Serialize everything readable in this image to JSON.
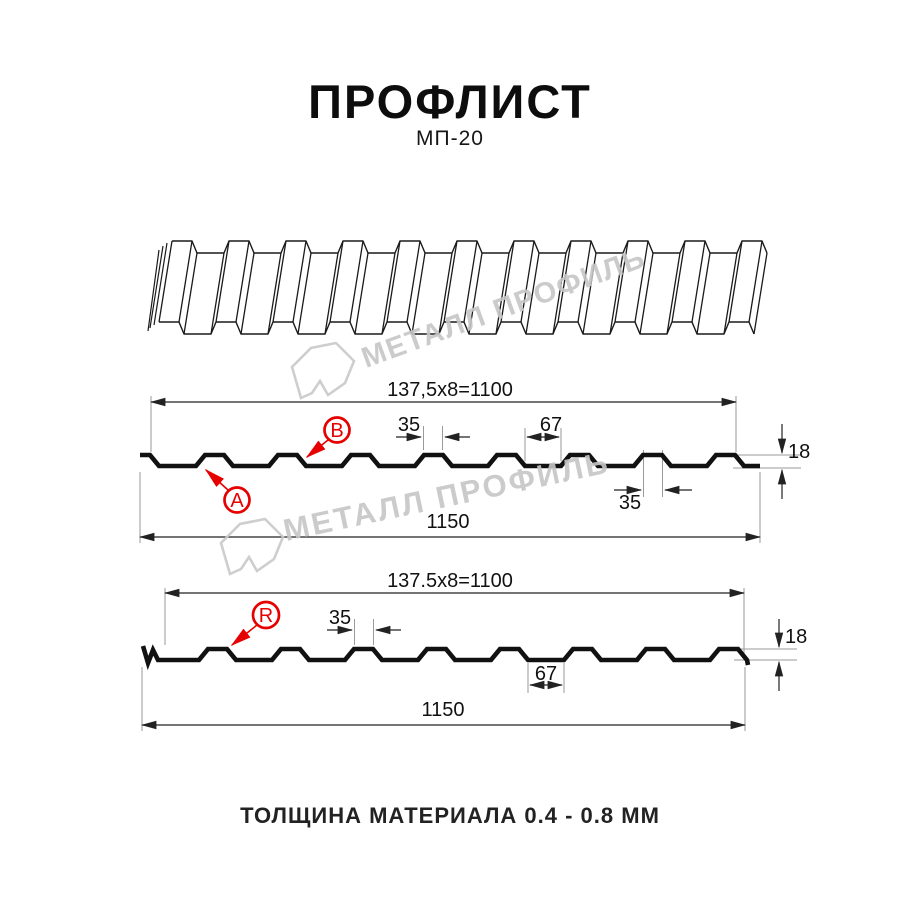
{
  "header": {
    "title": "ПРОФЛИСТ",
    "subtitle": "МП-20"
  },
  "footer": {
    "text": "ТОЛЩИНА МАТЕРИАЛА 0.4 - 0.8 ММ"
  },
  "watermark": {
    "text": "МЕТАЛЛ ПРОФИЛЬ"
  },
  "section1": {
    "pitch_dim": "137,5x8=1100",
    "overall_dim": "1150",
    "rib_top_dim": "35",
    "rib_top_dim2": "35",
    "valley_dim": "67",
    "height_dim": "18",
    "marker_a": "A",
    "marker_b": "B"
  },
  "section2": {
    "pitch_dim": "137.5x8=1100",
    "overall_dim": "1150",
    "rib_top_dim": "35",
    "valley_dim": "67",
    "height_dim": "18",
    "marker_r": "R"
  },
  "colors": {
    "accent_red": "#e60000",
    "line_black": "#111111",
    "dim_line": "#222222",
    "extension_line": "#9a9a9a",
    "watermark_gray": "#c6c6c6"
  }
}
